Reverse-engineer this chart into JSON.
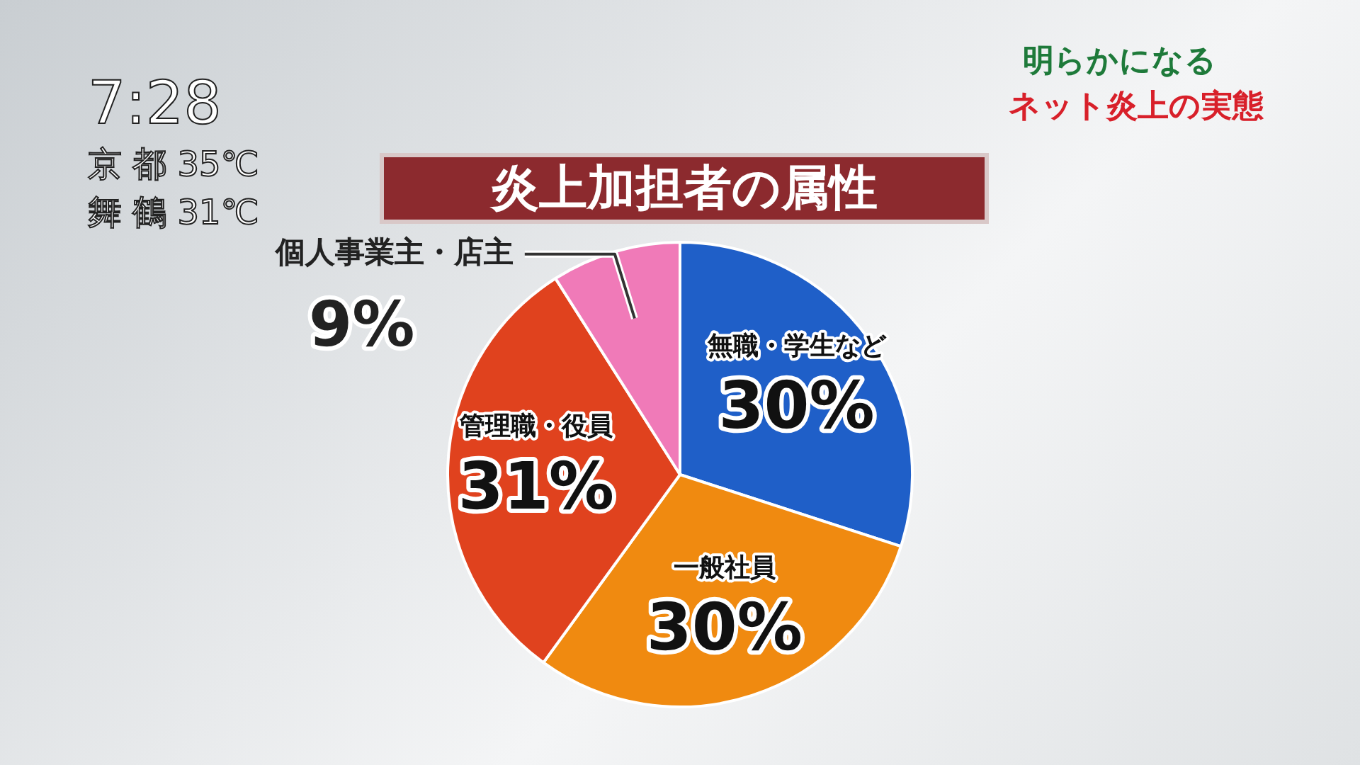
{
  "chart_data": {
    "type": "pie",
    "title": "炎上加担者の属性",
    "categories": [
      "無職・学生など",
      "一般社員",
      "管理職・役員",
      "個人事業主・店主"
    ],
    "values": [
      30,
      30,
      31,
      9
    ],
    "value_labels": [
      "30%",
      "30%",
      "31%",
      "9%"
    ],
    "colors": [
      "#1f5fc8",
      "#f08a10",
      "#e0421e",
      "#f07ab8"
    ],
    "annotations": [
      "7:28",
      "京 都 35℃",
      "舞 鶴 31℃",
      "明らかになる",
      "ネット炎上の実態"
    ],
    "legend": false
  }
}
